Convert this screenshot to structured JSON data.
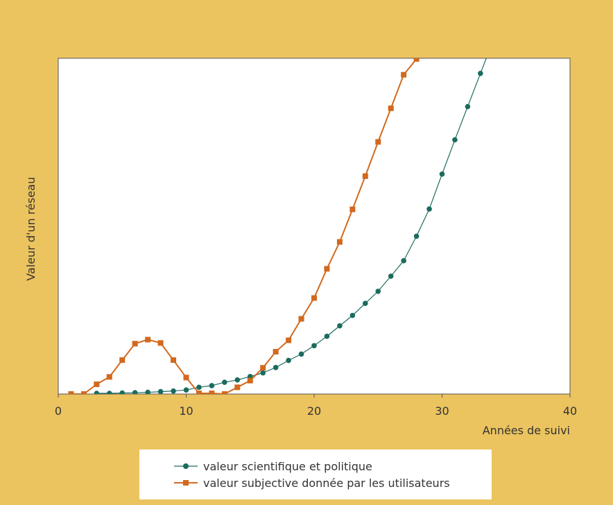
{
  "chart_data": {
    "type": "line",
    "title": "",
    "xlabel": "Années de suivi",
    "ylabel": "Valeur d'un réseau",
    "xlim": [
      0,
      40
    ],
    "xticks": [
      "0",
      "10",
      "20",
      "30",
      "40"
    ],
    "ylim": [
      0,
      100
    ],
    "y_ticks_labeled": false,
    "grid": false,
    "legend_position": "bottom",
    "series": [
      {
        "name": "valeur scientifique et politique",
        "color": "#1B6B5E",
        "marker": "circle",
        "x": [
          3,
          4,
          5,
          6,
          7,
          8,
          9,
          10,
          11,
          12,
          13,
          14,
          15,
          16,
          17,
          18,
          19,
          20,
          21,
          22,
          23,
          24,
          25,
          26,
          27,
          28,
          29,
          30,
          31,
          32,
          33
        ],
        "y": [
          0.2,
          0.2,
          0.3,
          0.4,
          0.5,
          0.7,
          0.9,
          1.2,
          2,
          2.5,
          3.5,
          4.2,
          5.2,
          6.3,
          7.9,
          10,
          11.9,
          14.4,
          17.2,
          20.3,
          23.4,
          27,
          30.6,
          35.1,
          39.7,
          47,
          55.1,
          65.5,
          75.7,
          85.6,
          95.5
        ]
      },
      {
        "name": "valeur subjective donnée par les utilisateurs",
        "color": "#D2691E",
        "marker": "square",
        "x": [
          1,
          2,
          3,
          4,
          5,
          6,
          7,
          8,
          9,
          10,
          11,
          12,
          13,
          14,
          15,
          16,
          17,
          18,
          19,
          20,
          21,
          22,
          23,
          24,
          25,
          26,
          27,
          28
        ],
        "y": [
          0,
          0,
          2.9,
          5.1,
          10.1,
          15,
          16.2,
          15.2,
          10.1,
          4.9,
          0.2,
          0.2,
          0,
          2,
          4,
          7.8,
          12.6,
          16,
          22.4,
          28.6,
          37.3,
          45.3,
          55,
          64.9,
          75.1,
          85.1,
          95.1,
          99.8
        ]
      }
    ]
  }
}
